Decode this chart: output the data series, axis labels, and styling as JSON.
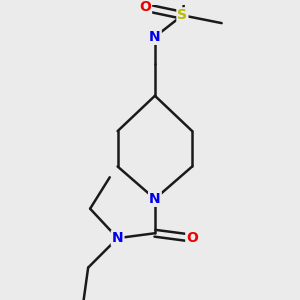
{
  "background_color": "#ebebeb",
  "bond_color": "#1a1a1a",
  "atom_colors": {
    "N": "#0000ee",
    "O": "#ee0000",
    "S": "#bbbb00",
    "C": "#1a1a1a"
  },
  "bond_width": 1.8,
  "font_size_atom": 10
}
